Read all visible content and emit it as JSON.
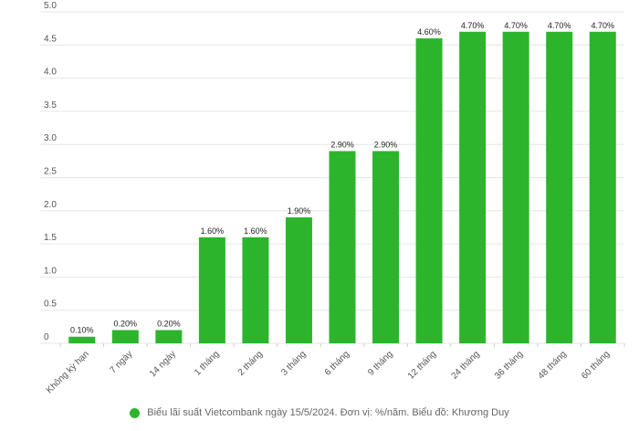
{
  "chart_data": {
    "type": "bar",
    "categories": [
      "Không kỳ hạn",
      "7 ngày",
      "14 ngày",
      "1 tháng",
      "2 tháng",
      "3 tháng",
      "6 tháng",
      "9 tháng",
      "12 tháng",
      "24 tháng",
      "36 tháng",
      "48 tháng",
      "60 tháng"
    ],
    "values": [
      0.1,
      0.2,
      0.2,
      1.6,
      1.6,
      1.9,
      2.9,
      2.9,
      4.6,
      4.7,
      4.7,
      4.7,
      4.7
    ],
    "data_labels": [
      "0.10%",
      "0.20%",
      "0.20%",
      "1.60%",
      "1.60%",
      "1.90%",
      "2.90%",
      "2.90%",
      "4.60%",
      "4.70%",
      "4.70%",
      "4.70%",
      "4.70%"
    ],
    "y_ticks": [
      "0",
      "0.5",
      "1.0",
      "1.5",
      "2.0",
      "2.5",
      "3.0",
      "3.5",
      "4.0",
      "4.5",
      "5.0"
    ],
    "ylim": [
      0,
      5
    ],
    "grid": true,
    "legend_position": "bottom",
    "legend": [
      "Biểu lãi suất Vietcombank ngày 15/5/2024. Đơn vị: %/năm. Biểu đồ: Khương Duy"
    ],
    "bar_color": "#2cb52c"
  }
}
